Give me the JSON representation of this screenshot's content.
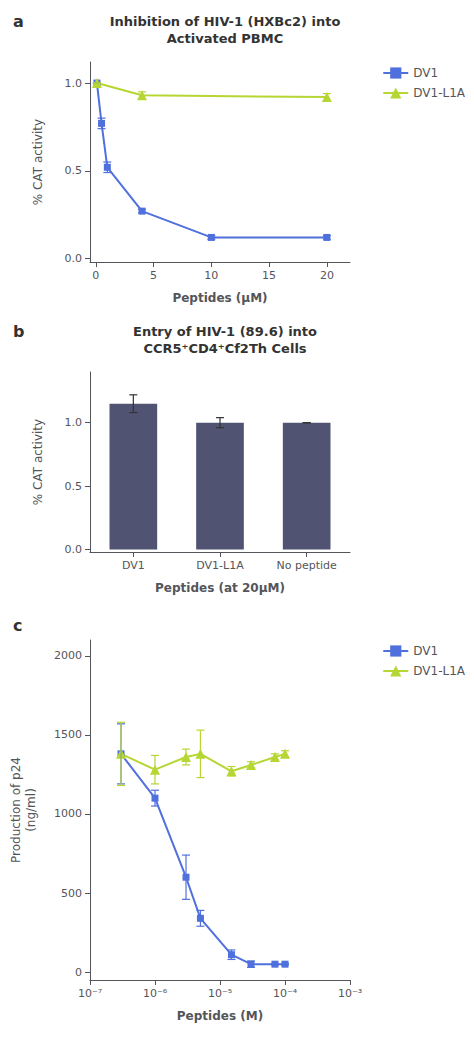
{
  "chart_data": [
    {
      "type": "line",
      "title": "Inhibition of HIV-1 (HXBc2) into\nActivated PBMC",
      "annotations": [
        "a"
      ],
      "xlabel": "Peptides (μM)",
      "ylabel": "% CAT activity",
      "xlim": [
        -0.5,
        22
      ],
      "xticks": [
        0,
        5,
        10,
        15,
        20
      ],
      "ylim": [
        -0.02,
        1.12
      ],
      "yticks": [
        {
          "value": 0.0,
          "label": "0.0"
        },
        0.5,
        {
          "value": 1.0,
          "label": "1.0"
        }
      ],
      "grid": false,
      "legend": "upper right",
      "series": [
        {
          "name": "DV1",
          "marker": "square",
          "x": [
            0.1,
            0.5,
            1.0,
            4.0,
            10.0,
            20.0
          ],
          "values": [
            1.0,
            0.77,
            0.52,
            0.27,
            0.12,
            0.12
          ],
          "yerr": [
            0.0,
            0.03,
            0.03,
            0.01,
            0.01,
            0.01
          ]
        },
        {
          "name": "DV1-L1A",
          "marker": "triangle",
          "x": [
            0.1,
            4.0,
            20.0
          ],
          "values": [
            1.0,
            0.93,
            0.92
          ],
          "yerr": [
            0.0,
            0.02,
            0.02
          ]
        }
      ]
    },
    {
      "type": "bar",
      "title": "Entry of HIV-1 (89.6) into\nCCR5⁺CD4⁺Cf2Th Cells",
      "annotations": [
        "b"
      ],
      "xlabel": "Peptides (at 20μM)",
      "ylabel": "% CAT activity",
      "categories": [
        "DV1",
        "DV1-L1A",
        "No peptide"
      ],
      "values": [
        1.15,
        1.0,
        1.0
      ],
      "yerr": [
        0.07,
        0.04,
        0.0
      ],
      "ylim": [
        -0.02,
        1.4
      ],
      "yticks": [
        {
          "value": 0.0,
          "label": "0.0"
        },
        0.5,
        {
          "value": 1.0,
          "label": "1.0"
        }
      ],
      "grid": false
    },
    {
      "type": "line",
      "log": "x",
      "annotations": [
        "c"
      ],
      "xlabel": "Peptides (M)",
      "ylabel": "Production of p24\n(ng/ml)",
      "xlim": [
        1e-07,
        0.001
      ],
      "xticks": [
        {
          "value": 1e-07,
          "label": "10⁻⁷"
        },
        {
          "value": 1e-06,
          "label": "10⁻⁶"
        },
        {
          "value": 1e-05,
          "label": "10⁻⁵"
        },
        {
          "value": 0.0001,
          "label": "10⁻⁴"
        },
        {
          "value": 0.001,
          "label": "10⁻³"
        }
      ],
      "ylim": [
        -50,
        2100
      ],
      "yticks": [
        0,
        500,
        1000,
        1500,
        2000
      ],
      "grid": false,
      "legend": "upper right",
      "series": [
        {
          "name": "DV1",
          "marker": "square",
          "x": [
            3e-07,
            1e-06,
            3e-06,
            5e-06,
            1.5e-05,
            3e-05,
            7e-05,
            0.0001
          ],
          "values": [
            1380,
            1100,
            600,
            340,
            110,
            50,
            50,
            50
          ],
          "yerr": [
            190,
            50,
            140,
            50,
            30,
            20,
            5,
            5
          ]
        },
        {
          "name": "DV1-L1A",
          "marker": "triangle",
          "x": [
            3e-07,
            1e-06,
            3e-06,
            5e-06,
            1.5e-05,
            3e-05,
            7e-05,
            0.0001
          ],
          "values": [
            1380,
            1280,
            1360,
            1380,
            1270,
            1310,
            1360,
            1380
          ],
          "yerr": [
            200,
            90,
            50,
            150,
            30,
            20,
            20,
            20
          ]
        }
      ]
    }
  ]
}
